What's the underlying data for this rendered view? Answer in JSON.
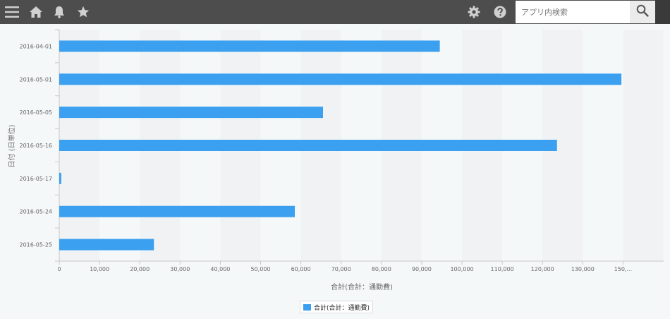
{
  "toolbar": {
    "search_placeholder": "アプリ内検索",
    "icons": [
      "menu-icon",
      "home-icon",
      "bell-icon",
      "star-icon",
      "gear-icon",
      "help-icon",
      "search-icon"
    ]
  },
  "chart_data": {
    "type": "bar",
    "orientation": "horizontal",
    "categories": [
      "2016-04-01",
      "2016-05-01",
      "2016-05-05",
      "2016-05-16",
      "2016-05-17",
      "2016-05-24",
      "2016-05-25"
    ],
    "series": [
      {
        "name": "合計(合計：通勤費)",
        "values": [
          94500,
          139600,
          65500,
          123600,
          500,
          58500,
          23500
        ],
        "color": "#3aa0ef"
      }
    ],
    "xlabel": "合計(合計：通勤費)",
    "ylabel": "日付 (日単位)",
    "xlim": [
      0,
      150000
    ],
    "xticks": [
      "0",
      "10,000",
      "20,000",
      "30,000",
      "40,000",
      "50,000",
      "60,000",
      "70,000",
      "80,000",
      "90,000",
      "100,000",
      "110,000",
      "120,000",
      "130,000",
      "150,..."
    ],
    "grid": "alternating vertical bands",
    "legend": "bottom-center"
  }
}
